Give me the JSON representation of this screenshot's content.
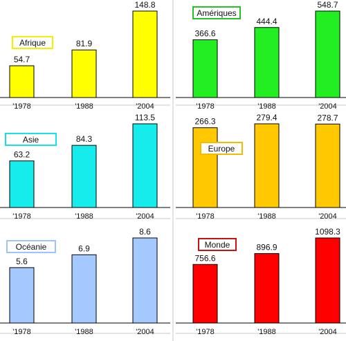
{
  "chart_data": [
    {
      "type": "bar",
      "title": "Afrique",
      "title_border_color": "#f2ef00",
      "bar_color": "#ffff00",
      "categories": [
        "'1978",
        "'1988",
        "'2004"
      ],
      "values": [
        54.7,
        81.9,
        148.8
      ],
      "value_labels": [
        "54.7",
        "81.9",
        "148.8"
      ]
    },
    {
      "type": "bar",
      "title": "Amériques",
      "title_border_color": "#22c322",
      "bar_color": "#22ee22",
      "categories": [
        "'1978",
        "'1988",
        "'2004"
      ],
      "values": [
        366.6,
        444.4,
        548.7
      ],
      "value_labels": [
        "366.6",
        "444.4",
        "548.7"
      ]
    },
    {
      "type": "bar",
      "title": "Asie",
      "title_border_color": "#17e2e2",
      "bar_color": "#16ecec",
      "categories": [
        "'1978",
        "'1988",
        "'2004"
      ],
      "values": [
        63.2,
        84.3,
        113.5
      ],
      "value_labels": [
        "63.2",
        "84.3",
        "113.5"
      ]
    },
    {
      "type": "bar",
      "title": "Europe",
      "title_border_color": "#f0bb00",
      "bar_color": "#ffc800",
      "categories": [
        "'1978",
        "'1988",
        "'2004"
      ],
      "values": [
        266.3,
        279.4,
        278.7
      ],
      "value_labels": [
        "266.3",
        "279.4",
        "278.7"
      ]
    },
    {
      "type": "bar",
      "title": "Océanie",
      "title_border_color": "#9cc3ff",
      "bar_color": "#a3c9ff",
      "categories": [
        "'1978",
        "'1988",
        "'2004"
      ],
      "values": [
        5.6,
        6.9,
        8.6
      ],
      "value_labels": [
        "5.6",
        "6.9",
        "8.6"
      ]
    },
    {
      "type": "bar",
      "title": "Monde",
      "title_border_color": "#cc1010",
      "bar_color": "#ff0000",
      "categories": [
        "'1978",
        "'1988",
        "'2004"
      ],
      "values": [
        756.6,
        896.9,
        1098.3
      ],
      "value_labels": [
        "756.6",
        "896.9",
        "1098.3"
      ]
    }
  ]
}
